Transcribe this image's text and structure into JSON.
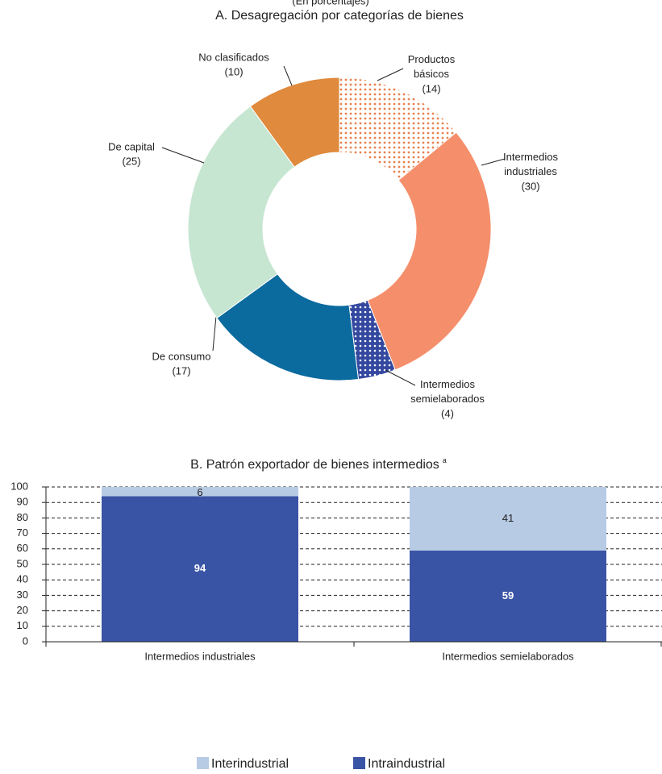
{
  "chart_data": [
    {
      "type": "donut",
      "subtitle": "(En porcentajes)",
      "title": "A. Desagregación por categorías de bienes",
      "categories": [
        "Productos básicos",
        "Intermedios industriales",
        "Intermedios semielaborados",
        "De consumo",
        "De capital",
        "No clasificados"
      ],
      "values": [
        14,
        30,
        4,
        17,
        25,
        10
      ],
      "value_labels": [
        "(14)",
        "(30)",
        "(4)",
        "(17)",
        "(25)",
        "(10)"
      ],
      "colors": [
        "#e8804c",
        "#f58f6b",
        "#3448a0",
        "#0b6a9e",
        "#c7e6d2",
        "#df8a3c"
      ],
      "fill_pattern": [
        "light-dots",
        null,
        "dark-dots",
        null,
        null,
        null
      ]
    },
    {
      "type": "stacked_bar",
      "title": "B. Patrón exportador de bienes intermedios",
      "title_note": "a",
      "categories": [
        "Intermedios industriales",
        "Intermedios semielaborados"
      ],
      "series": [
        {
          "name": "Interindustrial",
          "color": "#b8cbe4",
          "values": [
            6,
            41
          ]
        },
        {
          "name": "Intraindustrial",
          "color": "#3a54a5",
          "values": [
            94,
            59
          ]
        }
      ],
      "ylim": [
        0,
        100
      ],
      "yticks": [
        0,
        10,
        20,
        30,
        40,
        50,
        60,
        70,
        80,
        90,
        100
      ],
      "grid": true
    }
  ]
}
